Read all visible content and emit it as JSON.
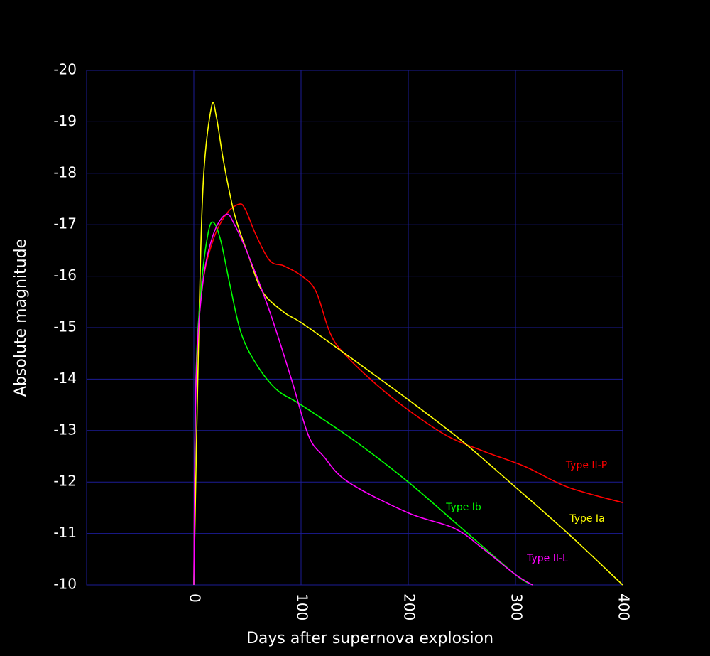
{
  "chart_data": {
    "type": "line",
    "x_label": "Days after supernova explosion",
    "y_label": "Absolute magnitude",
    "xlim": [
      -100,
      400
    ],
    "xticks": [
      0,
      100,
      200,
      300,
      400
    ],
    "ylim": [
      -10,
      -20
    ],
    "yticks": [
      -20,
      -19,
      -18,
      -17,
      -16,
      -15,
      -14,
      -13,
      -12,
      -11,
      -10
    ],
    "grid": true,
    "grid_color": "#1c1c96",
    "series": [
      {
        "name": "Type II-P",
        "color": "#ff0000",
        "x": [
          0,
          2,
          8,
          18,
          30,
          42,
          48,
          58,
          71,
          84,
          101,
          114,
          127,
          140,
          170,
          200,
          236,
          270,
          309,
          349,
          400
        ],
        "values": [
          -10,
          -14.0,
          -15.8,
          -16.7,
          -17.2,
          -17.4,
          -17.3,
          -16.8,
          -16.3,
          -16.2,
          -16.0,
          -15.7,
          -14.9,
          -14.5,
          -13.9,
          -13.4,
          -12.9,
          -12.6,
          -12.3,
          -11.9,
          -11.6
        ]
      },
      {
        "name": "Type Ia",
        "color": "#ffff00",
        "x": [
          0,
          4.6,
          9,
          16.6,
          21,
          28,
          38,
          51,
          64,
          84,
          100,
          134,
          200,
          250,
          300,
          349,
          400
        ],
        "values": [
          -10,
          -14.9,
          -17.9,
          -19.3,
          -19.1,
          -18.2,
          -17.2,
          -16.4,
          -15.7,
          -15.3,
          -15.1,
          -14.6,
          -13.6,
          -12.8,
          -11.9,
          -11.0,
          -10.0
        ]
      },
      {
        "name": "Type Ib",
        "color": "#00ff00",
        "x": [
          0,
          2,
          7,
          13,
          18,
          25,
          34,
          44,
          58,
          77,
          100,
          150,
          200,
          250,
          300,
          316
        ],
        "values": [
          -10,
          -14.0,
          -15.8,
          -16.8,
          -17.05,
          -16.7,
          -15.8,
          -14.9,
          -14.3,
          -13.8,
          -13.5,
          -12.8,
          -12.0,
          -11.1,
          -10.2,
          -10
        ]
      },
      {
        "name": "Type II-L",
        "color": "#ff00ff",
        "x": [
          0,
          2,
          8,
          18,
          30,
          38,
          51,
          71,
          91,
          107,
          121,
          144,
          200,
          243,
          270,
          300,
          316
        ],
        "values": [
          -10,
          -13.9,
          -15.8,
          -16.8,
          -17.2,
          -17.0,
          -16.4,
          -15.3,
          -14.0,
          -12.9,
          -12.5,
          -12.0,
          -11.4,
          -11.1,
          -10.7,
          -10.2,
          -10
        ]
      }
    ]
  }
}
